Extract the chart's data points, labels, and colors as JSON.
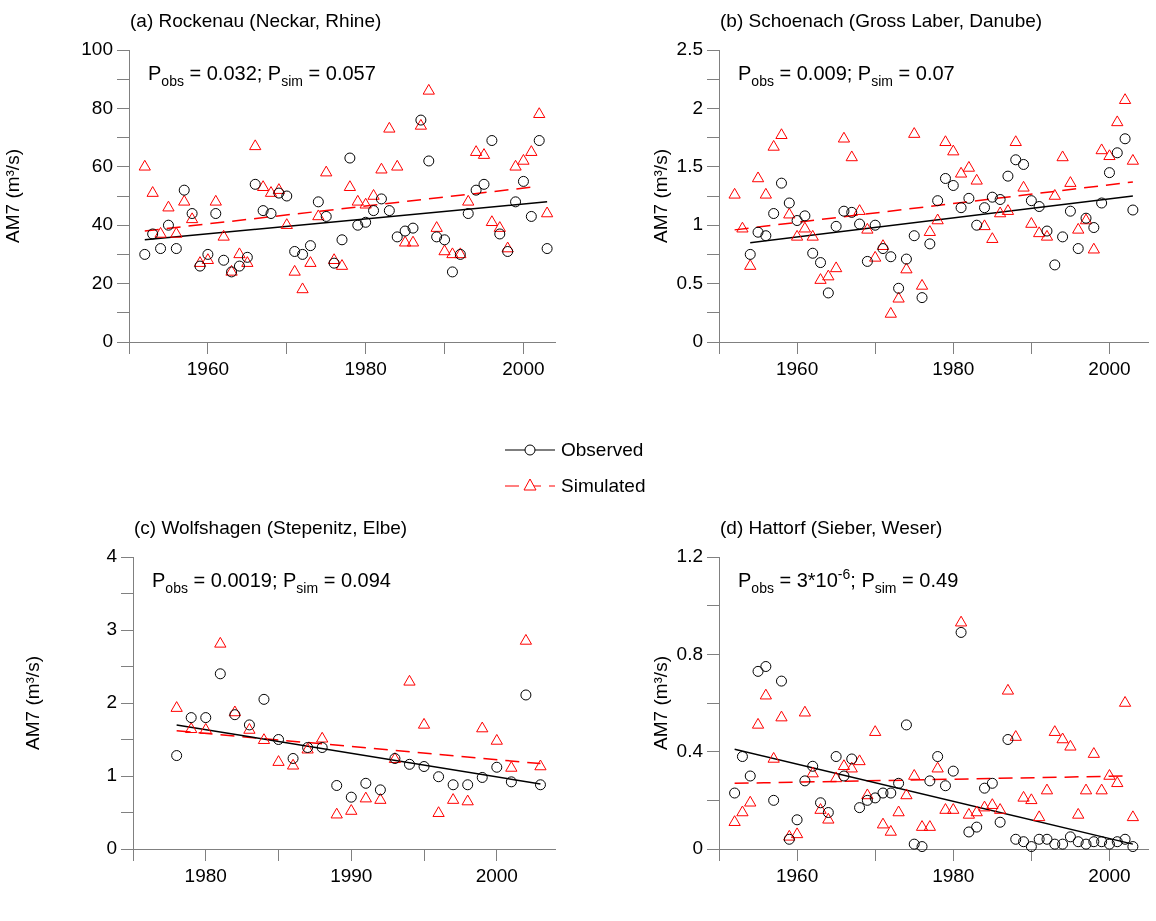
{
  "chart_data": [
    {
      "type": "scatter",
      "title": "(a) Rockenau (Neckar, Rhine)",
      "ylabel": "AM7 (m³/s)",
      "annotations": [
        "P$_{obs}$ = 0.032; P$_{sim}$ = 0.057"
      ],
      "legend": "bottom",
      "x": [
        1952,
        1953,
        1954,
        1955,
        1956,
        1957,
        1958,
        1959,
        1960,
        1961,
        1962,
        1963,
        1964,
        1965,
        1966,
        1967,
        1968,
        1969,
        1970,
        1971,
        1972,
        1973,
        1974,
        1975,
        1976,
        1977,
        1978,
        1979,
        1980,
        1981,
        1982,
        1983,
        1984,
        1985,
        1986,
        1987,
        1988,
        1989,
        1990,
        1991,
        1992,
        1993,
        1994,
        1995,
        1996,
        1997,
        1998,
        1999,
        2000,
        2001,
        2002,
        2003
      ],
      "xlim": [
        1950,
        2004
      ],
      "xticks": [
        {
          "value": 1950,
          "label": null
        },
        1960,
        {
          "value": 1970,
          "label": null
        },
        1980,
        {
          "value": 1990,
          "label": null
        },
        2000
      ],
      "ylim": [
        0,
        100
      ],
      "yticks": [
        0,
        {
          "value": 10,
          "label": null
        },
        20,
        {
          "value": 30,
          "label": null
        },
        40,
        {
          "value": 50,
          "label": null
        },
        60,
        {
          "value": 70,
          "label": null
        },
        80,
        {
          "value": 90,
          "label": null
        },
        100
      ],
      "series": [
        {
          "name": "Observed",
          "type": "scatter",
          "marker": "circle",
          "color": "#000000",
          "values": [
            30,
            37,
            32,
            40,
            32,
            52,
            44,
            26,
            30,
            44,
            28,
            24,
            26,
            29,
            54,
            45,
            44,
            51,
            50,
            31,
            30,
            33,
            48,
            43,
            27,
            35,
            63,
            40,
            41,
            45,
            49,
            45,
            36,
            38,
            39,
            76,
            62,
            36,
            35,
            24,
            30,
            44,
            52,
            54,
            69,
            37,
            31,
            48,
            55,
            43,
            69,
            32
          ]
        },
        {
          "name": "Simulated",
          "type": "scatter",
          "marker": "triangle",
          "color": "#ff0000",
          "values": [
            60,
            51,
            37,
            46,
            37,
            48,
            42,
            27,
            28,
            48,
            36,
            24,
            30,
            27,
            67,
            53,
            51,
            52,
            40,
            24,
            18,
            27,
            43,
            58,
            28,
            26,
            53,
            48,
            47,
            50,
            59,
            73,
            60,
            34,
            34,
            74,
            86,
            39,
            31,
            30,
            30,
            48,
            65,
            64,
            41,
            39,
            32,
            60,
            62,
            65,
            78,
            44
          ]
        },
        {
          "type": "line",
          "marker": "none",
          "line_style": "solid",
          "color": "#000000",
          "x": [
            1952,
            2003
          ],
          "values": [
            35,
            48
          ]
        },
        {
          "type": "line",
          "marker": "none",
          "line_style": "dashed",
          "color": "#ff0000",
          "x": [
            1952,
            2001
          ],
          "values": [
            38,
            53
          ]
        }
      ]
    },
    {
      "type": "scatter",
      "title": "(b) Schoenach (Gross Laber, Danube)",
      "ylabel": "AM7 (m³/s)",
      "annotations": [
        "P$_{obs}$ = 0.009; P$_{sim}$ = 0.07"
      ],
      "x": [
        1952,
        1953,
        1954,
        1955,
        1956,
        1957,
        1958,
        1959,
        1960,
        1961,
        1962,
        1963,
        1964,
        1965,
        1966,
        1967,
        1968,
        1969,
        1970,
        1971,
        1972,
        1973,
        1974,
        1975,
        1976,
        1977,
        1978,
        1979,
        1980,
        1981,
        1982,
        1983,
        1984,
        1985,
        1986,
        1987,
        1988,
        1989,
        1990,
        1991,
        1992,
        1993,
        1994,
        1995,
        1996,
        1997,
        1998,
        1999,
        2000,
        2001,
        2002,
        2003
      ],
      "xlim": [
        1950,
        2005
      ],
      "xticks": [
        {
          "value": 1950,
          "label": null
        },
        1960,
        {
          "value": 1970,
          "label": null
        },
        1980,
        {
          "value": 1990,
          "label": null
        },
        2000
      ],
      "ylim": [
        0,
        2.5
      ],
      "yticks": [
        0,
        {
          "value": 0.25,
          "label": null
        },
        0.5,
        {
          "value": 0.75,
          "label": null
        },
        1,
        {
          "value": 1.25,
          "label": null
        },
        1.5,
        {
          "value": 1.75,
          "label": null
        },
        2,
        {
          "value": 2.25,
          "label": null
        },
        2.5
      ],
      "series": [
        {
          "type": "scatter",
          "marker": "circle",
          "color": "#000000",
          "values": [
            null,
            null,
            0.75,
            0.94,
            0.91,
            1.1,
            1.36,
            1.19,
            1.04,
            1.08,
            0.76,
            0.68,
            0.42,
            0.99,
            1.12,
            1.11,
            1.01,
            0.69,
            1.0,
            0.8,
            0.73,
            0.46,
            0.71,
            0.91,
            0.38,
            0.84,
            1.21,
            1.4,
            1.34,
            1.15,
            1.23,
            1.0,
            1.15,
            1.24,
            1.22,
            1.42,
            1.56,
            1.52,
            1.21,
            1.16,
            0.95,
            0.66,
            0.9,
            1.12,
            0.8,
            1.06,
            0.98,
            1.19,
            1.45,
            1.62,
            1.74,
            1.13
          ]
        },
        {
          "type": "scatter",
          "marker": "triangle",
          "color": "#ff0000",
          "values": [
            1.26,
            0.97,
            0.65,
            1.4,
            1.26,
            1.67,
            1.77,
            1.09,
            0.9,
            0.97,
            0.9,
            0.53,
            0.56,
            0.63,
            1.74,
            1.58,
            1.12,
            0.96,
            0.72,
            0.82,
            0.24,
            0.37,
            0.62,
            1.78,
            0.48,
            0.94,
            1.04,
            1.71,
            1.63,
            1.44,
            1.49,
            1.38,
            0.99,
            0.88,
            1.1,
            1.12,
            1.71,
            1.32,
            1.01,
            0.93,
            0.9,
            1.25,
            1.58,
            1.36,
            0.96,
            1.04,
            0.79,
            1.64,
            1.59,
            1.88,
            2.07,
            1.55
          ]
        },
        {
          "type": "line",
          "marker": "none",
          "line_style": "solid",
          "color": "#000000",
          "x": [
            1954,
            2003
          ],
          "values": [
            0.85,
            1.25
          ]
        },
        {
          "type": "line",
          "marker": "none",
          "line_style": "dashed",
          "color": "#ff0000",
          "x": [
            1952,
            2003
          ],
          "values": [
            0.96,
            1.37
          ]
        }
      ]
    },
    {
      "type": "scatter",
      "title": "(c) Wolfshagen (Stepenitz, Elbe)",
      "ylabel": "AM7 (m³/s)",
      "annotations": [
        "P$_{obs}$ = 0.0019; P$_{sim}$ = 0.094"
      ],
      "x": [
        1978,
        1979,
        1980,
        1981,
        1982,
        1983,
        1984,
        1985,
        1986,
        1987,
        1988,
        1989,
        1990,
        1991,
        1992,
        1993,
        1994,
        1995,
        1996,
        1997,
        1998,
        1999,
        2000,
        2001,
        2002,
        2003
      ],
      "xlim": [
        1975,
        2004
      ],
      "xticks": [
        {
          "value": 1975,
          "label": null
        },
        1980,
        {
          "value": 1985,
          "label": null
        },
        1990,
        {
          "value": 1995,
          "label": null
        },
        2000
      ],
      "ylim": [
        0,
        4
      ],
      "yticks": [
        0,
        {
          "value": 0.5,
          "label": null
        },
        1,
        {
          "value": 1.5,
          "label": null
        },
        2,
        {
          "value": 2.5,
          "label": null
        },
        3,
        {
          "value": 3.5,
          "label": null
        },
        4
      ],
      "series": [
        {
          "type": "scatter",
          "marker": "circle",
          "color": "#000000",
          "values": [
            1.28,
            1.8,
            1.8,
            2.4,
            1.84,
            1.7,
            2.05,
            1.5,
            1.24,
            1.39,
            1.39,
            0.87,
            0.71,
            0.9,
            0.81,
            1.24,
            1.16,
            1.13,
            0.99,
            0.88,
            0.88,
            0.98,
            1.12,
            0.92,
            2.11,
            0.88
          ]
        },
        {
          "type": "scatter",
          "marker": "triangle",
          "color": "#ff0000",
          "values": [
            1.93,
            1.64,
            1.63,
            2.81,
            1.87,
            1.63,
            1.49,
            1.19,
            1.14,
            1.36,
            1.51,
            0.47,
            0.52,
            0.69,
            0.67,
            1.23,
            2.29,
            1.7,
            0.49,
            0.67,
            0.65,
            1.65,
            1.48,
            1.11,
            2.85,
            1.13
          ]
        },
        {
          "type": "line",
          "marker": "none",
          "line_style": "solid",
          "color": "#000000",
          "x": [
            1978,
            2003
          ],
          "values": [
            1.7,
            0.89
          ]
        },
        {
          "type": "line",
          "marker": "none",
          "line_style": "dashed",
          "color": "#ff0000",
          "x": [
            1978,
            2003
          ],
          "values": [
            1.62,
            1.17
          ]
        }
      ]
    },
    {
      "type": "scatter",
      "title": "(d) Hattorf (Sieber, Weser)",
      "ylabel": "AM7 (m³/s)",
      "annotations": [
        "P$_{obs}$ = 3*10$^{-6}$; P$_{sim}$ = 0.49"
      ],
      "x": [
        1952,
        1953,
        1954,
        1955,
        1956,
        1957,
        1958,
        1959,
        1960,
        1961,
        1962,
        1963,
        1964,
        1965,
        1966,
        1967,
        1968,
        1969,
        1970,
        1971,
        1972,
        1973,
        1974,
        1975,
        1976,
        1977,
        1978,
        1979,
        1980,
        1981,
        1982,
        1983,
        1984,
        1985,
        1986,
        1987,
        1988,
        1989,
        1990,
        1991,
        1992,
        1993,
        1994,
        1995,
        1996,
        1997,
        1998,
        1999,
        2000,
        2001,
        2002,
        2003
      ],
      "xlim": [
        1950,
        2005
      ],
      "xticks": [
        {
          "value": 1950,
          "label": null
        },
        1960,
        {
          "value": 1970,
          "label": null
        },
        1980,
        {
          "value": 1990,
          "label": null
        },
        2000
      ],
      "ylim": [
        0,
        1.2
      ],
      "yticks": [
        0,
        {
          "value": 0.2,
          "label": null
        },
        0.4,
        {
          "value": 0.6,
          "label": null
        },
        0.8,
        {
          "value": 1,
          "label": null
        },
        1.2
      ],
      "series": [
        {
          "type": "scatter",
          "marker": "circle",
          "color": "#000000",
          "values": [
            0.23,
            0.38,
            0.3,
            0.73,
            0.75,
            0.2,
            0.69,
            0.04,
            0.12,
            0.28,
            0.34,
            0.19,
            0.15,
            0.38,
            0.3,
            0.37,
            0.17,
            0.2,
            0.21,
            0.23,
            0.23,
            0.27,
            0.51,
            0.02,
            0.01,
            0.28,
            0.38,
            0.26,
            0.32,
            0.89,
            0.07,
            0.09,
            0.25,
            0.27,
            0.11,
            0.45,
            0.04,
            0.03,
            0.01,
            0.04,
            0.04,
            0.02,
            0.02,
            0.05,
            0.03,
            0.02,
            0.03,
            0.03,
            0.02,
            0.03,
            0.04,
            0.01
          ]
        },
        {
          "type": "scatter",
          "marker": "triangle",
          "color": "#ff0000",
          "values": [
            0.11,
            0.15,
            0.19,
            0.51,
            0.63,
            0.37,
            0.54,
            0.05,
            0.06,
            0.56,
            0.31,
            0.16,
            0.12,
            0.29,
            0.34,
            0.33,
            0.36,
            0.22,
            0.48,
            0.1,
            0.07,
            0.15,
            0.22,
            0.3,
            0.09,
            0.09,
            0.33,
            0.16,
            0.16,
            0.93,
            0.14,
            0.15,
            0.17,
            0.18,
            0.16,
            0.65,
            0.46,
            0.21,
            0.2,
            0.13,
            0.24,
            0.48,
            0.45,
            0.42,
            0.14,
            0.24,
            0.39,
            0.24,
            0.3,
            0.27,
            0.6,
            0.13
          ]
        },
        {
          "type": "line",
          "marker": "none",
          "line_style": "solid",
          "color": "#000000",
          "x": [
            1952,
            2003
          ],
          "values": [
            0.41,
            0.02
          ]
        },
        {
          "type": "line",
          "marker": "none",
          "line_style": "dashed",
          "color": "#ff0000",
          "x": [
            1952,
            2002
          ],
          "values": [
            0.27,
            0.3
          ]
        }
      ]
    }
  ]
}
